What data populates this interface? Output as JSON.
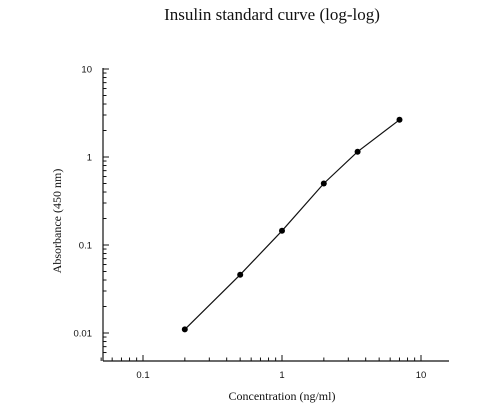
{
  "chart_data": {
    "type": "line",
    "title": "Insulin standard curve (log-log)",
    "xlabel": "Concentration (ng/ml)",
    "ylabel": "Absorbance (450 nm)",
    "x_scale": "log",
    "y_scale": "log",
    "xlim": [
      0.05,
      15
    ],
    "ylim": [
      0.006,
      10
    ],
    "x_ticks": [
      {
        "value": 0.1,
        "label": "0.1"
      },
      {
        "value": 1,
        "label": "1"
      },
      {
        "value": 10,
        "label": "10"
      }
    ],
    "y_ticks": [
      {
        "value": 0.01,
        "label": "0.01"
      },
      {
        "value": 0.1,
        "label": "0.1"
      },
      {
        "value": 1,
        "label": "1"
      },
      {
        "value": 10,
        "label": "10"
      }
    ],
    "grid": false,
    "series": [
      {
        "x": [
          0.2,
          0.5,
          1,
          2,
          3.5,
          7
        ],
        "y": [
          0.011,
          0.046,
          0.145,
          0.5,
          1.15,
          2.65
        ]
      }
    ]
  }
}
